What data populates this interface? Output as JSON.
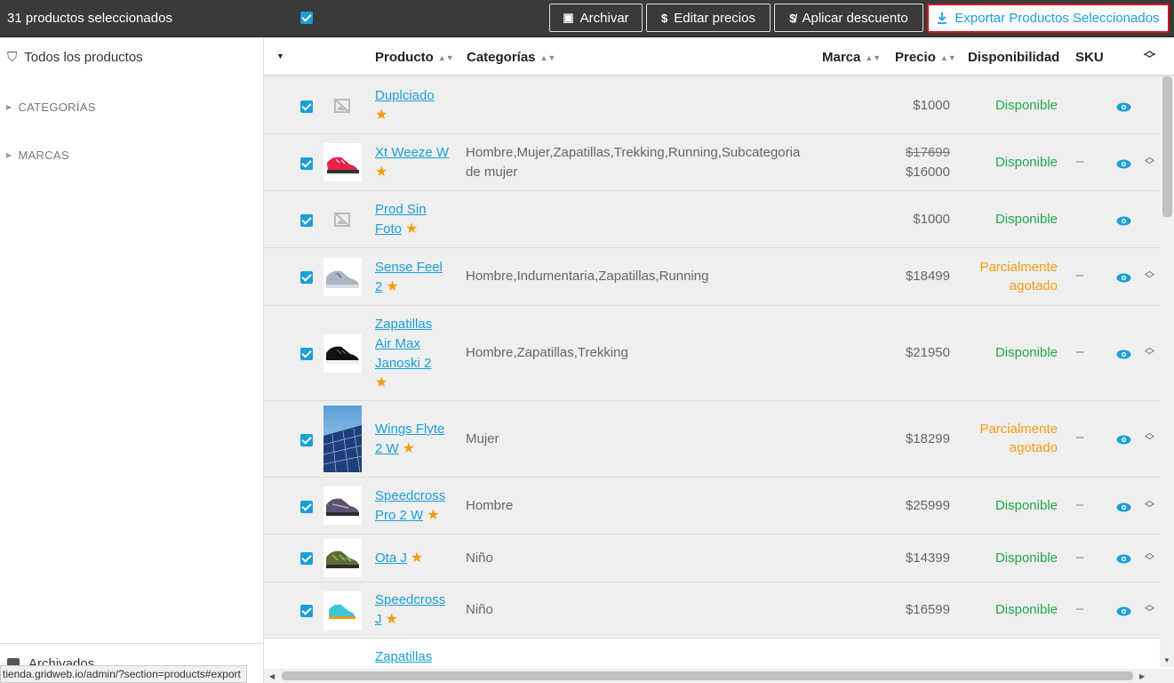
{
  "topbar": {
    "selected_text": "31 productos seleccionados",
    "archive_label": "Archivar",
    "edit_prices_label": "Editar precios",
    "discount_label": "Aplicar descuento",
    "export_label": "Exportar Productos Seleccionados"
  },
  "sidebar": {
    "all_products": "Todos los productos",
    "categories": "CATEGORÍAS",
    "brands": "MARCAS",
    "archived": "Archivados"
  },
  "status_url": "tienda.gridweb.io/admin/?section=products#export",
  "table": {
    "columns": {
      "product": "Producto",
      "categories": "Categorías",
      "brand": "Marca",
      "price": "Precio",
      "availability": "Disponibilidad",
      "sku": "SKU"
    },
    "rows": [
      {
        "name_1": "Duplciado",
        "name_2": "",
        "categories_1": "",
        "categories_2": "",
        "price_old": "",
        "price": "$1000",
        "avail_1": "Disponible",
        "avail_2": "",
        "sku": ""
      },
      {
        "name_1": "Xt Weeze W",
        "name_2": "",
        "categories_1": "Hombre,Mujer,Zapatillas,Trekking,Running,Subcategoria",
        "categories_2": "de mujer",
        "price_old": "$17699",
        "price": "$16000",
        "avail_1": "Disponible",
        "avail_2": "",
        "sku": "–"
      },
      {
        "name_1": "Prod Sin",
        "name_2": "Foto",
        "categories_1": "",
        "categories_2": "",
        "price_old": "",
        "price": "$1000",
        "avail_1": "Disponible",
        "avail_2": "",
        "sku": ""
      },
      {
        "name_1": "Sense Feel",
        "name_2": "2",
        "categories_1": "Hombre,Indumentaria,Zapatillas,Running",
        "categories_2": "",
        "price_old": "",
        "price": "$18499",
        "avail_1": "Parcialmente",
        "avail_2": "agotado",
        "sku": "–"
      },
      {
        "name_1": "Zapatillas",
        "name_2": "Air Max",
        "name_3": "Janoski 2",
        "categories_1": "Hombre,Zapatillas,Trekking",
        "categories_2": "",
        "price_old": "",
        "price": "$21950",
        "avail_1": "Disponible",
        "avail_2": "",
        "sku": "–"
      },
      {
        "name_1": "Wings Flyte",
        "name_2": "2 W",
        "categories_1": "Mujer",
        "categories_2": "",
        "price_old": "",
        "price": "$18299",
        "avail_1": "Parcialmente",
        "avail_2": "agotado",
        "sku": "–"
      },
      {
        "name_1": "Speedcross",
        "name_2": "Pro 2 W",
        "categories_1": "Hombre",
        "categories_2": "",
        "price_old": "",
        "price": "$25999",
        "avail_1": "Disponible",
        "avail_2": "",
        "sku": "–"
      },
      {
        "name_1": "Ota J",
        "name_2": "",
        "categories_1": "Niño",
        "categories_2": "",
        "price_old": "",
        "price": "$14399",
        "avail_1": "Disponible",
        "avail_2": "",
        "sku": "–"
      },
      {
        "name_1": "Speedcross",
        "name_2": "J",
        "categories_1": "Niño",
        "categories_2": "",
        "price_old": "",
        "price": "$16599",
        "avail_1": "Disponible",
        "avail_2": "",
        "sku": "–"
      },
      {
        "name_1": "Zapatillas",
        "name_2": "",
        "categories_1": "",
        "categories_2": "",
        "price_old": "",
        "price": "",
        "avail_1": "",
        "avail_2": "",
        "sku": ""
      }
    ]
  },
  "colors": {
    "accent": "#1a9fd8",
    "available": "#1fa84a",
    "partial": "#f39c12",
    "topbar": "#3a3a3a",
    "highlight_border": "#d0141e"
  }
}
